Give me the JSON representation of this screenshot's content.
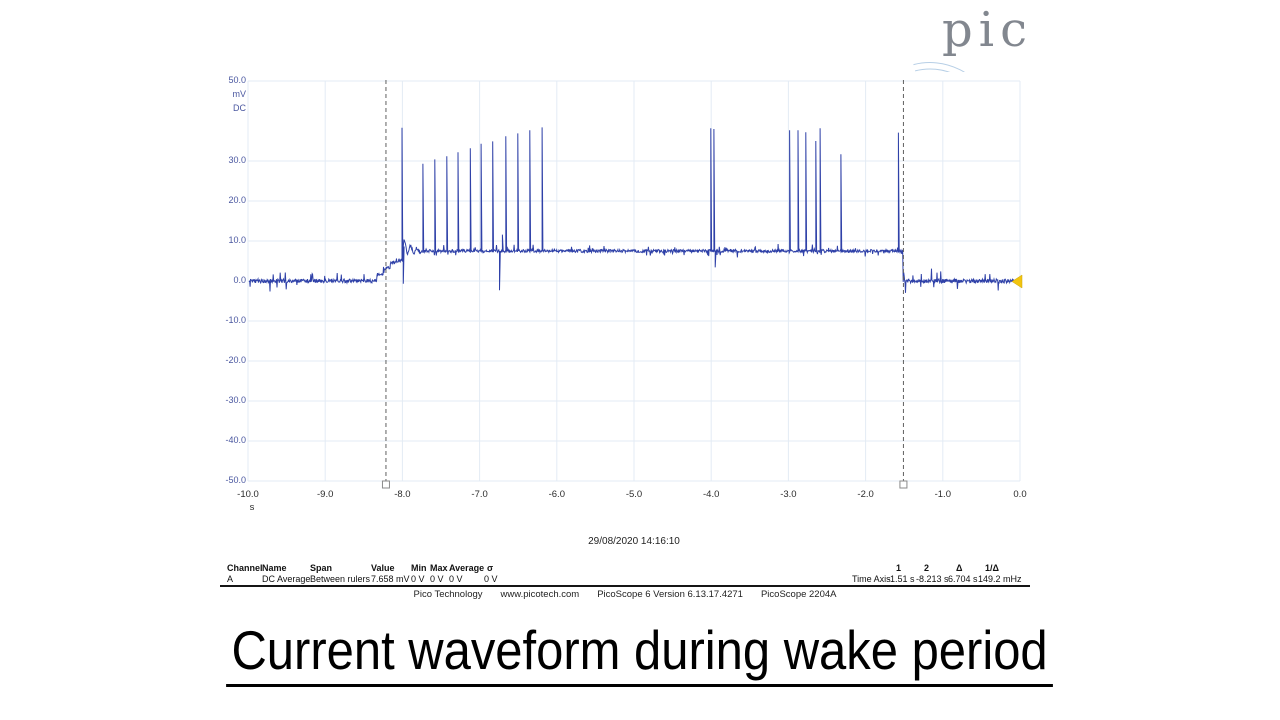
{
  "slide": {
    "title": "Current waveform during wake period"
  },
  "logo": {
    "text": "pic",
    "text_color": "#82878f",
    "wave_color": "#b7cfe6"
  },
  "scope": {
    "timestamp": "29/08/2020 14:16:10",
    "measurements": {
      "headers": [
        "Channel",
        "Name",
        "Span",
        "Value",
        "Min",
        "Max",
        "Average",
        "σ"
      ],
      "row": [
        "A",
        "DC Average",
        "Between rulers",
        "7.658 mV",
        "0 V",
        "0 V",
        "0 V",
        "0 V"
      ]
    },
    "rulers": {
      "headers": [
        "1",
        "2",
        "Δ",
        "1/Δ"
      ],
      "row_label": "Time Axis",
      "values": [
        "-1.51 s",
        "-8.213 s",
        "6.704 s",
        "149.2 mHz"
      ]
    },
    "footer": [
      "Pico Technology",
      "www.picotech.com",
      "PicoScope 6 Version 6.13.17.4271",
      "PicoScope 2204A"
    ]
  },
  "chart_data": {
    "type": "line",
    "title": "",
    "xlabel": "s",
    "ylabel": "mV DC",
    "xlim": [
      -10.0,
      0.0
    ],
    "ylim": [
      -50.0,
      50.0
    ],
    "grid": true,
    "x_ticks": [
      {
        "t": -10.0,
        "label": "-10.0"
      },
      {
        "t": -9.0,
        "label": "-9.0"
      },
      {
        "t": -8.0,
        "label": "-8.0"
      },
      {
        "t": -7.0,
        "label": "-7.0"
      },
      {
        "t": -6.0,
        "label": "-6.0"
      },
      {
        "t": -5.0,
        "label": "-5.0"
      },
      {
        "t": -4.0,
        "label": "-4.0"
      },
      {
        "t": -3.0,
        "label": "-3.0"
      },
      {
        "t": -2.0,
        "label": "-2.0"
      },
      {
        "t": -1.0,
        "label": "-1.0"
      },
      {
        "t": 0.0,
        "label": "0.0"
      }
    ],
    "y_ticks": [
      {
        "v": 50,
        "label": "50.0"
      },
      {
        "v": 30,
        "label": "30.0"
      },
      {
        "v": 20,
        "label": "20.0"
      },
      {
        "v": 10,
        "label": "10.0"
      },
      {
        "v": 0,
        "label": "0.0"
      },
      {
        "v": -10,
        "label": "-10.0"
      },
      {
        "v": -20,
        "label": "-20.0"
      },
      {
        "v": -30,
        "label": "-30.0"
      },
      {
        "v": -40,
        "label": "-40.0"
      },
      {
        "v": -50,
        "label": "-50.0"
      }
    ],
    "unit_lines": [
      "mV",
      "DC"
    ],
    "x_unit": "s",
    "time_rulers_s": [
      -8.213,
      -1.51
    ],
    "wake_level_mv": 7.5,
    "sleep_level_mv": 0.0,
    "baseline_keypoints": [
      [
        -10.0,
        0.0
      ],
      [
        -8.33,
        1.6
      ],
      [
        -8.245,
        3.2
      ],
      [
        -8.16,
        4.6
      ],
      [
        -8.06,
        5.1
      ],
      [
        -7.995,
        7.5
      ],
      [
        -1.513,
        0.0
      ]
    ],
    "wiggle": {
      "t0": -7.99,
      "t1": -7.76,
      "amp": 1.5,
      "freq": 80,
      "decay": 5,
      "lift": 0.9
    },
    "spikes": [
      [
        -8.005,
        38.3
      ],
      [
        -7.988,
        -0.7
      ],
      [
        -7.735,
        29.3
      ],
      [
        -7.58,
        30.4
      ],
      [
        -7.425,
        31.2
      ],
      [
        -7.28,
        32.2
      ],
      [
        -7.12,
        33.2
      ],
      [
        -6.98,
        34.3
      ],
      [
        -6.83,
        34.9
      ],
      [
        -6.742,
        -2.3
      ],
      [
        -6.705,
        11.6
      ],
      [
        -6.66,
        36.2
      ],
      [
        -6.505,
        36.9
      ],
      [
        -6.35,
        37.7
      ],
      [
        -6.19,
        38.4
      ],
      [
        -4.005,
        38.2
      ],
      [
        -3.965,
        38.0
      ],
      [
        -3.948,
        3.4
      ],
      [
        -2.985,
        37.7
      ],
      [
        -2.875,
        37.7
      ],
      [
        -2.775,
        37.2
      ],
      [
        -2.645,
        35.0
      ],
      [
        -2.59,
        38.2
      ],
      [
        -2.32,
        31.7
      ],
      [
        -1.575,
        37.1
      ]
    ],
    "noise": {
      "sleep_amp": 0.5,
      "wake_amp": 0.38,
      "tick_prob": 0.05,
      "sleep_tick": 2.2,
      "wake_tick": 1.1
    },
    "colors": {
      "wave": "#2f41a8",
      "grid": "#e3ebf4",
      "ruler": "#5f5f5f",
      "marker": "#f2c40f",
      "y_label": "#4a57a0"
    },
    "legend": null
  }
}
